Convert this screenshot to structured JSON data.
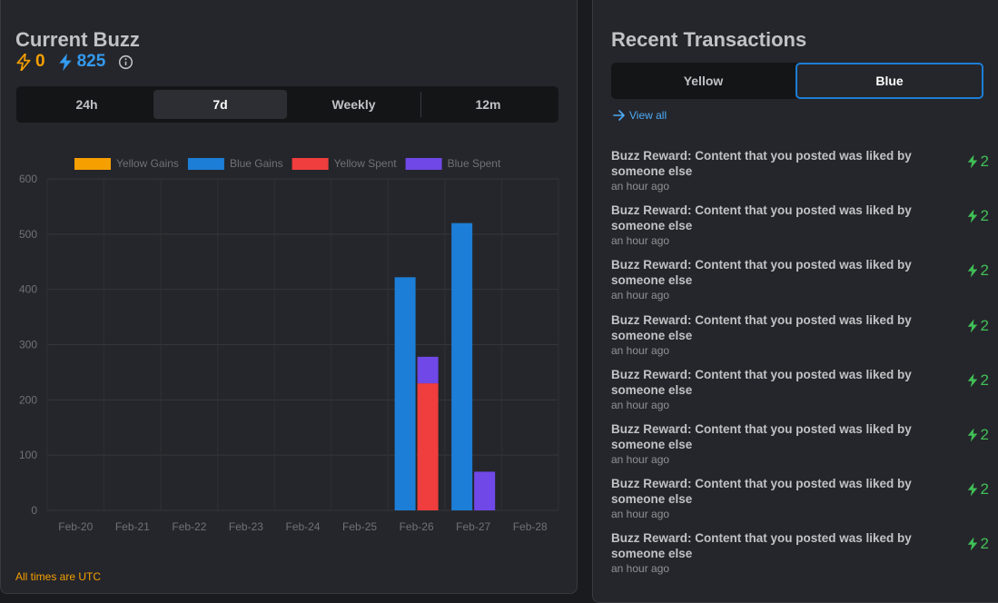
{
  "left": {
    "title": "Current Buzz",
    "yellow_balance": "0",
    "blue_balance": "825",
    "ranges": [
      "24h",
      "7d",
      "Weekly",
      "12m"
    ],
    "active_range": "7d",
    "timezone_note": "All times are UTC"
  },
  "right": {
    "title": "Recent Transactions",
    "tabs": [
      "Yellow",
      "Blue"
    ],
    "active_tab": "Blue",
    "view_all": "View all",
    "transactions": [
      {
        "text": "Buzz Reward: Content that you posted was liked by someone else",
        "time": "an hour ago",
        "amount": "2"
      },
      {
        "text": "Buzz Reward: Content that you posted was liked by someone else",
        "time": "an hour ago",
        "amount": "2"
      },
      {
        "text": "Buzz Reward: Content that you posted was liked by someone else",
        "time": "an hour ago",
        "amount": "2"
      },
      {
        "text": "Buzz Reward: Content that you posted was liked by someone else",
        "time": "an hour ago",
        "amount": "2"
      },
      {
        "text": "Buzz Reward: Content that you posted was liked by someone else",
        "time": "an hour ago",
        "amount": "2"
      },
      {
        "text": "Buzz Reward: Content that you posted was liked by someone else",
        "time": "an hour ago",
        "amount": "2"
      },
      {
        "text": "Buzz Reward: Content that you posted was liked by someone else",
        "time": "an hour ago",
        "amount": "2"
      },
      {
        "text": "Buzz Reward: Content that you posted was liked by someone else",
        "time": "an hour ago",
        "amount": "2"
      }
    ]
  },
  "colors": {
    "yellow": "#f59f00",
    "blue": "#1c7ed6",
    "red": "#f03e3e",
    "purple": "#7048e8",
    "green": "#40c057"
  },
  "chart_data": {
    "type": "bar",
    "categories": [
      "Feb-20",
      "Feb-21",
      "Feb-22",
      "Feb-23",
      "Feb-24",
      "Feb-25",
      "Feb-26",
      "Feb-27",
      "Feb-28"
    ],
    "series": [
      {
        "name": "Yellow Gains",
        "color": "#f59f00",
        "stack": "gains",
        "values": [
          0,
          0,
          0,
          0,
          0,
          0,
          0,
          0,
          0
        ]
      },
      {
        "name": "Blue Gains",
        "color": "#1c7ed6",
        "stack": "gains",
        "values": [
          0,
          0,
          0,
          0,
          0,
          0,
          422,
          520,
          0
        ]
      },
      {
        "name": "Yellow Spent",
        "color": "#f03e3e",
        "stack": "spent",
        "values": [
          0,
          0,
          0,
          0,
          0,
          0,
          230,
          0,
          0
        ]
      },
      {
        "name": "Blue Spent",
        "color": "#7048e8",
        "stack": "spent",
        "values": [
          0,
          0,
          0,
          0,
          0,
          0,
          48,
          70,
          0
        ]
      }
    ],
    "yticks": [
      0,
      100,
      200,
      300,
      400,
      500,
      600
    ],
    "ylim": [
      0,
      600
    ],
    "grid": true,
    "legend": "top"
  }
}
